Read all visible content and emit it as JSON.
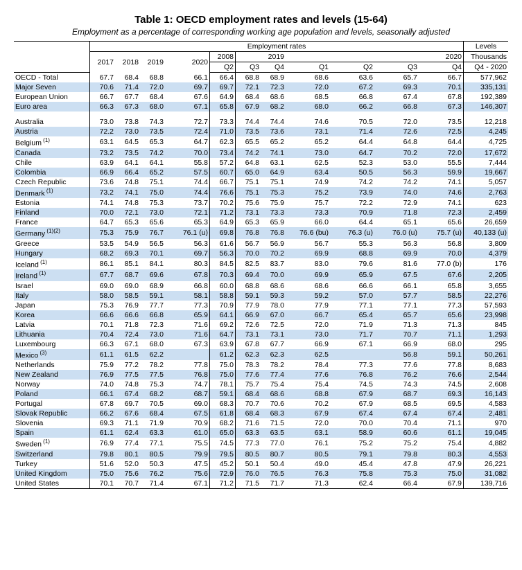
{
  "title": "Table 1: OECD employment rates and levels (15-64)",
  "subtitle": "Employment as a percentage of corresponding working age population and levels, seasonally adjusted",
  "header": {
    "emp_rates": "Employment rates",
    "levels": "Levels",
    "thousands": "Thousands",
    "q4_2020": "Q4 - 2020",
    "y2017": "2017",
    "y2018": "2018",
    "y2019": "2019",
    "y2020": "2020",
    "y2008": "2008",
    "y2019b": "2019",
    "y2020b": "2020",
    "q2": "Q2",
    "q3": "Q3",
    "q4": "Q4",
    "q1": "Q1"
  },
  "groups": [
    {
      "rows": [
        {
          "label": "OECD - Total",
          "note": "",
          "v": [
            "67.7",
            "68.4",
            "68.8",
            "66.1",
            "66.4",
            "68.8",
            "68.9",
            "68.6",
            "63.6",
            "65.7",
            "66.7"
          ],
          "lvl": "577,962"
        },
        {
          "label": "Major Seven",
          "note": "",
          "v": [
            "70.6",
            "71.4",
            "72.0",
            "69.7",
            "69.7",
            "72.1",
            "72.3",
            "72.0",
            "67.2",
            "69.3",
            "70.1"
          ],
          "lvl": "335,131"
        },
        {
          "label": "European Union",
          "note": "",
          "v": [
            "66.7",
            "67.7",
            "68.4",
            "67.6",
            "64.9",
            "68.4",
            "68.6",
            "68.5",
            "66.8",
            "67.4",
            "67.8"
          ],
          "lvl": "192,389"
        },
        {
          "label": "Euro area",
          "note": "",
          "v": [
            "66.3",
            "67.3",
            "68.0",
            "67.1",
            "65.8",
            "67.9",
            "68.2",
            "68.0",
            "66.2",
            "66.8",
            "67.3"
          ],
          "lvl": "146,307"
        }
      ]
    },
    {
      "rows": [
        {
          "label": "Australia",
          "note": "",
          "v": [
            "73.0",
            "73.8",
            "74.3",
            "72.7",
            "73.3",
            "74.4",
            "74.4",
            "74.6",
            "70.5",
            "72.0",
            "73.5"
          ],
          "lvl": "12,218"
        },
        {
          "label": "Austria",
          "note": "",
          "v": [
            "72.2",
            "73.0",
            "73.5",
            "72.4",
            "71.0",
            "73.5",
            "73.6",
            "73.1",
            "71.4",
            "72.6",
            "72.5"
          ],
          "lvl": "4,245"
        },
        {
          "label": "Belgium",
          "note": "(1)",
          "v": [
            "63.1",
            "64.5",
            "65.3",
            "64.7",
            "62.3",
            "65.5",
            "65.2",
            "65.2",
            "64.4",
            "64.8",
            "64.4"
          ],
          "lvl": "4,725"
        },
        {
          "label": "Canada",
          "note": "",
          "v": [
            "73.2",
            "73.5",
            "74.2",
            "70.0",
            "73.4",
            "74.2",
            "74.1",
            "73.0",
            "64.7",
            "70.2",
            "72.0"
          ],
          "lvl": "17,672"
        },
        {
          "label": "Chile",
          "note": "",
          "v": [
            "63.9",
            "64.1",
            "64.1",
            "55.8",
            "57.2",
            "64.8",
            "63.1",
            "62.5",
            "52.3",
            "53.0",
            "55.5"
          ],
          "lvl": "7,444"
        },
        {
          "label": "Colombia",
          "note": "",
          "v": [
            "66.9",
            "66.4",
            "65.2",
            "57.5",
            "60.7",
            "65.0",
            "64.9",
            "63.4",
            "50.5",
            "56.3",
            "59.9"
          ],
          "lvl": "19,667"
        },
        {
          "label": "Czech Republic",
          "note": "",
          "v": [
            "73.6",
            "74.8",
            "75.1",
            "74.4",
            "66.7",
            "75.1",
            "75.1",
            "74.9",
            "74.2",
            "74.2",
            "74.1"
          ],
          "lvl": "5,057"
        },
        {
          "label": "Denmark",
          "note": "(1)",
          "v": [
            "73.2",
            "74.1",
            "75.0",
            "74.4",
            "76.6",
            "75.1",
            "75.3",
            "75.2",
            "73.9",
            "74.0",
            "74.6"
          ],
          "lvl": "2,763"
        },
        {
          "label": "Estonia",
          "note": "",
          "v": [
            "74.1",
            "74.8",
            "75.3",
            "73.7",
            "70.2",
            "75.6",
            "75.9",
            "75.7",
            "72.2",
            "72.9",
            "74.1"
          ],
          "lvl": "623"
        },
        {
          "label": "Finland",
          "note": "",
          "v": [
            "70.0",
            "72.1",
            "73.0",
            "72.1",
            "71.2",
            "73.1",
            "73.3",
            "73.3",
            "70.9",
            "71.8",
            "72.3"
          ],
          "lvl": "2,459"
        },
        {
          "label": "France",
          "note": "",
          "v": [
            "64.7",
            "65.3",
            "65.6",
            "65.3",
            "64.9",
            "65.3",
            "65.9",
            "66.0",
            "64.4",
            "65.1",
            "65.6"
          ],
          "lvl": "26,659"
        },
        {
          "label": "Germany",
          "note": "(1)(2)",
          "v": [
            "75.3",
            "75.9",
            "76.7",
            "76.1 (u)",
            "69.8",
            "76.8",
            "76.8",
            "76.6 (bu)",
            "76.3 (u)",
            "76.0 (u)",
            "75.7 (u)"
          ],
          "lvl": "40,133 (u)"
        },
        {
          "label": "Greece",
          "note": "",
          "v": [
            "53.5",
            "54.9",
            "56.5",
            "56.3",
            "61.6",
            "56.7",
            "56.9",
            "56.7",
            "55.3",
            "56.3",
            "56.8"
          ],
          "lvl": "3,809"
        },
        {
          "label": "Hungary",
          "note": "",
          "v": [
            "68.2",
            "69.3",
            "70.1",
            "69.7",
            "56.3",
            "70.0",
            "70.2",
            "69.9",
            "68.8",
            "69.9",
            "70.0"
          ],
          "lvl": "4,379"
        },
        {
          "label": "Iceland",
          "note": "(1)",
          "v": [
            "86.1",
            "85.1",
            "84.1",
            "80.3",
            "84.5",
            "82.5",
            "83.7",
            "83.0",
            "79.6",
            "81.6",
            "77.0 (b)"
          ],
          "lvl": "176"
        },
        {
          "label": "Ireland",
          "note": "(1)",
          "v": [
            "67.7",
            "68.7",
            "69.6",
            "67.8",
            "70.3",
            "69.4",
            "70.0",
            "69.9",
            "65.9",
            "67.5",
            "67.6"
          ],
          "lvl": "2,205"
        },
        {
          "label": "Israel",
          "note": "",
          "v": [
            "69.0",
            "69.0",
            "68.9",
            "66.8",
            "60.0",
            "68.8",
            "68.6",
            "68.6",
            "66.6",
            "66.1",
            "65.8"
          ],
          "lvl": "3,655"
        },
        {
          "label": "Italy",
          "note": "",
          "v": [
            "58.0",
            "58.5",
            "59.1",
            "58.1",
            "58.8",
            "59.1",
            "59.3",
            "59.2",
            "57.0",
            "57.7",
            "58.5"
          ],
          "lvl": "22,276"
        },
        {
          "label": "Japan",
          "note": "",
          "v": [
            "75.3",
            "76.9",
            "77.7",
            "77.3",
            "70.9",
            "77.9",
            "78.0",
            "77.9",
            "77.1",
            "77.1",
            "77.3"
          ],
          "lvl": "57,593"
        },
        {
          "label": "Korea",
          "note": "",
          "v": [
            "66.6",
            "66.6",
            "66.8",
            "65.9",
            "64.1",
            "66.9",
            "67.0",
            "66.7",
            "65.4",
            "65.7",
            "65.6"
          ],
          "lvl": "23,998"
        },
        {
          "label": "Latvia",
          "note": "",
          "v": [
            "70.1",
            "71.8",
            "72.3",
            "71.6",
            "69.2",
            "72.6",
            "72.5",
            "72.0",
            "71.9",
            "71.3",
            "71.3"
          ],
          "lvl": "845"
        },
        {
          "label": "Lithuania",
          "note": "",
          "v": [
            "70.4",
            "72.4",
            "73.0",
            "71.6",
            "64.7",
            "73.1",
            "73.1",
            "73.0",
            "71.7",
            "70.7",
            "71.1"
          ],
          "lvl": "1,293"
        },
        {
          "label": "Luxembourg",
          "note": "",
          "v": [
            "66.3",
            "67.1",
            "68.0",
            "67.3",
            "63.9",
            "67.8",
            "67.7",
            "66.9",
            "67.1",
            "66.9",
            "68.0"
          ],
          "lvl": "295"
        },
        {
          "label": "Mexico",
          "note": "(3)",
          "v": [
            "61.1",
            "61.5",
            "62.2",
            "",
            "61.2",
            "62.3",
            "62.3",
            "62.5",
            "",
            "56.8",
            "59.1"
          ],
          "lvl": "50,261"
        },
        {
          "label": "Netherlands",
          "note": "",
          "v": [
            "75.9",
            "77.2",
            "78.2",
            "77.8",
            "75.0",
            "78.3",
            "78.2",
            "78.4",
            "77.3",
            "77.6",
            "77.8"
          ],
          "lvl": "8,683"
        },
        {
          "label": "New Zealand",
          "note": "",
          "v": [
            "76.9",
            "77.5",
            "77.5",
            "76.8",
            "75.0",
            "77.6",
            "77.4",
            "77.6",
            "76.8",
            "76.2",
            "76.6"
          ],
          "lvl": "2,544"
        },
        {
          "label": "Norway",
          "note": "",
          "v": [
            "74.0",
            "74.8",
            "75.3",
            "74.7",
            "78.1",
            "75.7",
            "75.4",
            "75.4",
            "74.5",
            "74.3",
            "74.5"
          ],
          "lvl": "2,608"
        },
        {
          "label": "Poland",
          "note": "",
          "v": [
            "66.1",
            "67.4",
            "68.2",
            "68.7",
            "59.1",
            "68.4",
            "68.6",
            "68.8",
            "67.9",
            "68.7",
            "69.3"
          ],
          "lvl": "16,143"
        },
        {
          "label": "Portugal",
          "note": "",
          "v": [
            "67.8",
            "69.7",
            "70.5",
            "69.0",
            "68.3",
            "70.7",
            "70.6",
            "70.2",
            "67.9",
            "68.5",
            "69.5"
          ],
          "lvl": "4,583"
        },
        {
          "label": "Slovak Republic",
          "note": "",
          "v": [
            "66.2",
            "67.6",
            "68.4",
            "67.5",
            "61.8",
            "68.4",
            "68.3",
            "67.9",
            "67.4",
            "67.4",
            "67.4"
          ],
          "lvl": "2,481"
        },
        {
          "label": "Slovenia",
          "note": "",
          "v": [
            "69.3",
            "71.1",
            "71.9",
            "70.9",
            "68.2",
            "71.6",
            "71.5",
            "72.0",
            "70.0",
            "70.4",
            "71.1"
          ],
          "lvl": "970"
        },
        {
          "label": "Spain",
          "note": "",
          "v": [
            "61.1",
            "62.4",
            "63.3",
            "61.0",
            "65.0",
            "63.3",
            "63.5",
            "63.1",
            "58.9",
            "60.6",
            "61.1"
          ],
          "lvl": "19,045"
        },
        {
          "label": "Sweden",
          "note": "(1)",
          "v": [
            "76.9",
            "77.4",
            "77.1",
            "75.5",
            "74.5",
            "77.3",
            "77.0",
            "76.1",
            "75.2",
            "75.2",
            "75.4"
          ],
          "lvl": "4,882"
        },
        {
          "label": "Switzerland",
          "note": "",
          "v": [
            "79.8",
            "80.1",
            "80.5",
            "79.9",
            "79.5",
            "80.5",
            "80.7",
            "80.5",
            "79.1",
            "79.8",
            "80.3"
          ],
          "lvl": "4,553"
        },
        {
          "label": "Turkey",
          "note": "",
          "v": [
            "51.6",
            "52.0",
            "50.3",
            "47.5",
            "45.2",
            "50.1",
            "50.4",
            "49.0",
            "45.4",
            "47.8",
            "47.9"
          ],
          "lvl": "26,221"
        },
        {
          "label": "United Kingdom",
          "note": "",
          "v": [
            "75.0",
            "75.6",
            "76.2",
            "75.6",
            "72.9",
            "76.0",
            "76.5",
            "76.3",
            "75.8",
            "75.3",
            "75.0"
          ],
          "lvl": "31,082"
        },
        {
          "label": "United States",
          "note": "",
          "v": [
            "70.1",
            "70.7",
            "71.4",
            "67.1",
            "71.2",
            "71.5",
            "71.7",
            "71.3",
            "62.4",
            "66.4",
            "67.9"
          ],
          "lvl": "139,716"
        }
      ]
    }
  ],
  "colors": {
    "row_even_bg": "#ccdff2",
    "row_odd_bg": "#ffffff",
    "border": "#000000",
    "text": "#000000"
  },
  "typography": {
    "title_fontsize": 15,
    "subtitle_fontsize": 12,
    "body_fontsize": 10.5,
    "font_family": "Arial"
  }
}
